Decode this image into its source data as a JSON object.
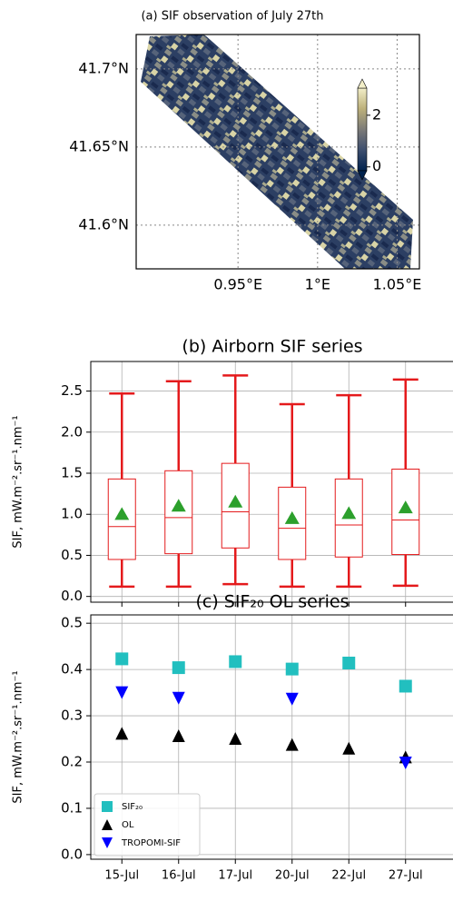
{
  "chart_data": [
    {
      "type": "map",
      "title": "(a) SIF observation of July 27th",
      "xlim": [
        0.886,
        1.064
      ],
      "ylim": [
        41.572,
        41.722
      ],
      "xticks": [
        {
          "value": 0.95,
          "label": "0.95°E"
        },
        {
          "value": 1,
          "label": "1°E"
        },
        {
          "value": 1.05,
          "label": "1.05°E"
        }
      ],
      "yticks": [
        {
          "value": 41.6,
          "label": "41.6°N"
        },
        {
          "value": 41.65,
          "label": "41.65°N"
        },
        {
          "value": 41.7,
          "label": "41.7°N"
        }
      ],
      "grid": true,
      "colorbar": {
        "lim": [
          -0.15,
          3.05
        ],
        "ticks": [
          0,
          2
        ],
        "colors": [
          "#00224e",
          "#3d4e6e",
          "#7c7b78",
          "#bcb07a",
          "#f2eec8"
        ]
      }
    },
    {
      "type": "box",
      "title": "(b) Airborn SIF series",
      "ylabel": "SIF, mW.m⁻².sr⁻¹.nm⁻¹",
      "categories": [
        "15-Jul",
        "16-Jul",
        "17-Jul",
        "20-Jul",
        "22-Jul",
        "27-Jul"
      ],
      "whislo": [
        0.12,
        0.12,
        0.15,
        0.12,
        0.12,
        0.13
      ],
      "q1": [
        0.45,
        0.52,
        0.59,
        0.45,
        0.48,
        0.51
      ],
      "med": [
        0.85,
        0.96,
        1.03,
        0.83,
        0.87,
        0.93
      ],
      "q3": [
        1.43,
        1.53,
        1.62,
        1.33,
        1.43,
        1.55
      ],
      "whishi": [
        2.47,
        2.62,
        2.69,
        2.34,
        2.45,
        2.64
      ],
      "means": [
        1.01,
        1.11,
        1.16,
        0.96,
        1.02,
        1.09
      ],
      "color": "#e41a1c",
      "mean_color": "#2ca02c",
      "ylim": [
        -0.07,
        2.86
      ],
      "yticks": [
        {
          "value": 0,
          "label": "0.0"
        },
        0.5,
        {
          "value": 1,
          "label": "1.0"
        },
        1.5,
        {
          "value": 2,
          "label": "2.0"
        },
        2.5
      ],
      "grid": true
    },
    {
      "type": "scatter",
      "title": "(c) SIF₂₀ OL series",
      "ylabel": "SIF, mW.m⁻².sr⁻¹.nm⁻¹",
      "categories": [
        "15-Jul",
        "16-Jul",
        "17-Jul",
        "20-Jul",
        "22-Jul",
        "27-Jul"
      ],
      "series": [
        {
          "name": "SIF₂₀",
          "color": "#22bfbf",
          "marker": "square",
          "values": [
            0.423,
            0.404,
            0.417,
            0.401,
            0.414,
            0.364
          ]
        },
        {
          "name": "OL",
          "color": "#000000",
          "marker": "triangle-up",
          "values": [
            0.262,
            0.257,
            0.251,
            0.238,
            0.23,
            0.211
          ]
        },
        {
          "name": "TROPOMI-SIF",
          "color": "#0000ff",
          "marker": "triangle-down",
          "values": [
            0.35,
            0.338,
            null,
            0.336,
            null,
            0.198
          ]
        }
      ],
      "ylim": [
        -0.01,
        0.518
      ],
      "yticks": [
        {
          "value": 0,
          "label": "0.0"
        },
        0.1,
        0.2,
        0.3,
        0.4,
        0.5
      ],
      "grid": true,
      "legend": "lower left"
    }
  ]
}
